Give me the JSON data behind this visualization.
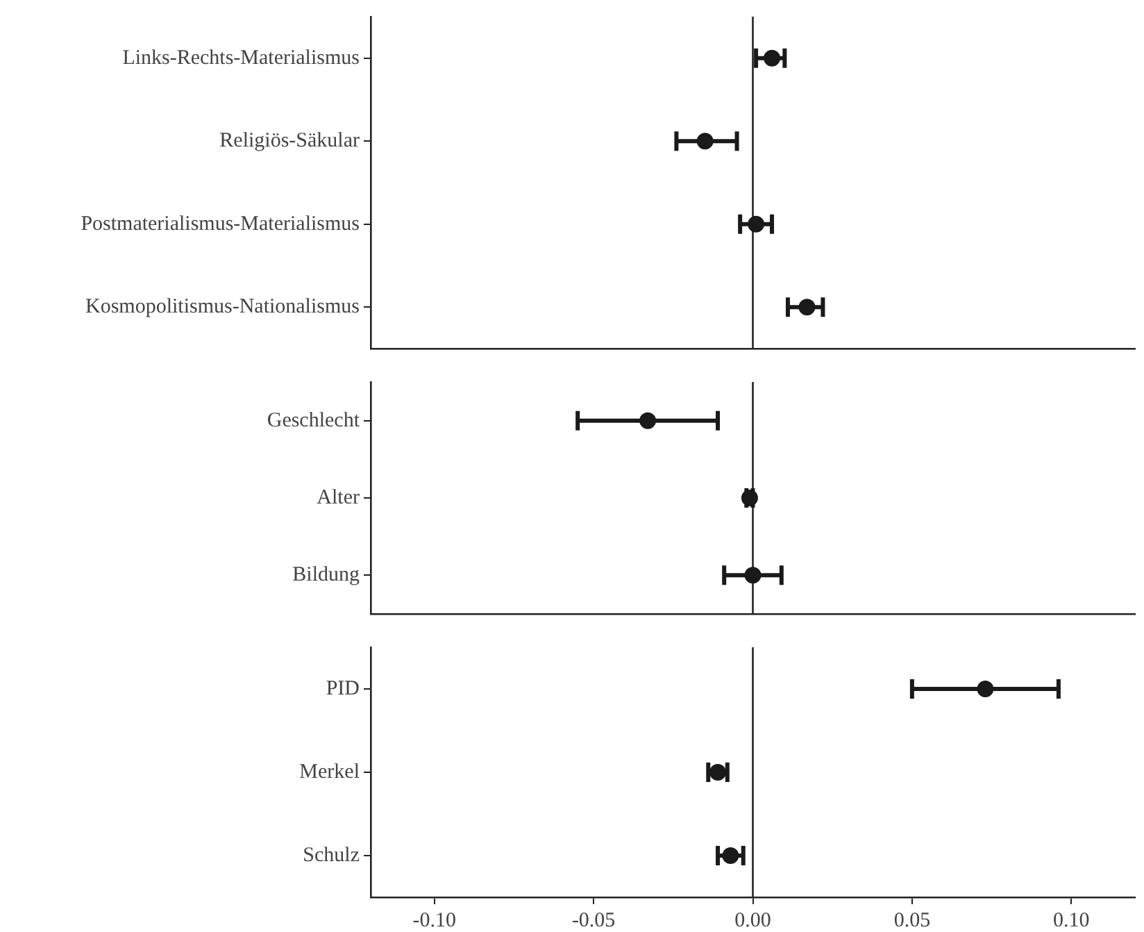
{
  "chart_data": [
    {
      "type": "scatter",
      "orientation": "horizontal",
      "categories": [
        "Links-Rechts-Materialismus",
        "Religiös-Säkular",
        "Postmaterialismus-Materialismus",
        "Kosmopolitismus-Nationalismus"
      ],
      "values": [
        0.006,
        -0.015,
        0.001,
        0.017
      ],
      "errors": [
        [
          0.001,
          0.01
        ],
        [
          -0.024,
          -0.005
        ],
        [
          -0.004,
          0.006
        ],
        [
          0.011,
          0.022
        ]
      ],
      "color": "#1a1a1a",
      "marker": "circle",
      "xlim": [
        -0.12,
        0.12
      ],
      "ref_lines": [
        {
          "axis": "x",
          "value": 0
        }
      ],
      "tick_labels": "y",
      "grid": false
    },
    {
      "type": "scatter",
      "orientation": "horizontal",
      "categories": [
        "Geschlecht",
        "Alter",
        "Bildung"
      ],
      "values": [
        -0.033,
        -0.001,
        0.0
      ],
      "errors": [
        [
          -0.055,
          -0.011
        ],
        [
          -0.002,
          0.0
        ],
        [
          -0.009,
          0.009
        ]
      ],
      "color": "#1a1a1a",
      "marker": "circle",
      "xlim": [
        -0.12,
        0.12
      ],
      "ref_lines": [
        {
          "axis": "x",
          "value": 0
        }
      ],
      "tick_labels": "y",
      "grid": false
    },
    {
      "type": "scatter",
      "orientation": "horizontal",
      "categories": [
        "PID",
        "Merkel",
        "Schulz"
      ],
      "values": [
        0.073,
        -0.011,
        -0.007
      ],
      "errors": [
        [
          0.05,
          0.096
        ],
        [
          -0.014,
          -0.008
        ],
        [
          -0.011,
          -0.003
        ]
      ],
      "color": "#1a1a1a",
      "marker": "circle",
      "xlim": [
        -0.12,
        0.12
      ],
      "xticks": [
        {
          "value": -0.1,
          "label": "-0.10"
        },
        {
          "value": -0.05,
          "label": "-0.05"
        },
        {
          "value": 0,
          "label": "0.00"
        },
        {
          "value": 0.05,
          "label": "0.05"
        },
        {
          "value": 0.1,
          "label": "0.10"
        }
      ],
      "ref_lines": [
        {
          "axis": "x",
          "value": 0
        }
      ],
      "grid": false
    }
  ]
}
